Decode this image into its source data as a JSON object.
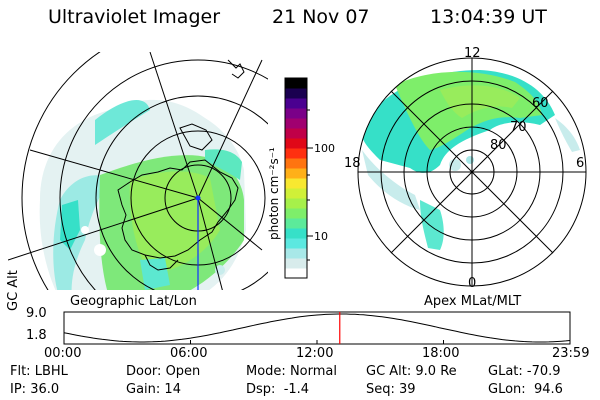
{
  "header": {
    "instrument": "Ultraviolet Imager",
    "date": "21 Nov 07",
    "time": "13:04:39 UT"
  },
  "colorbar": {
    "unit_label": "photon cm⁻²s⁻¹",
    "tick_100": "100",
    "tick_10": "10",
    "colors": [
      "#ffffff",
      "#d8ecec",
      "#a8e8e8",
      "#5ce8e0",
      "#36e0c8",
      "#5cea9a",
      "#7eee6a",
      "#a6f04a",
      "#d0f038",
      "#f8e830",
      "#ffb018",
      "#ff7410",
      "#ff3010",
      "#e00818",
      "#c00048",
      "#a00070",
      "#7a0088",
      "#4a0090",
      "#1a0050",
      "#000000"
    ]
  },
  "left_map": {
    "caption": "Geographic Lat/Lon"
  },
  "right_map": {
    "caption": "Apex MLat/MLT",
    "mlt_labels": {
      "top": "12",
      "left": "18",
      "right": "6",
      "bottom": "0"
    },
    "lat_labels": [
      "60",
      "70",
      "80"
    ]
  },
  "altitude_plot": {
    "axis_label": "GC Alt",
    "y_ticks": [
      "9.0",
      "1.8"
    ],
    "x_ticks": [
      "00:00",
      "06:00",
      "12:00",
      "18:00",
      "23:59"
    ],
    "current_marker_hours": 13.08,
    "marker_color": "#ff0000"
  },
  "status": {
    "row1": [
      {
        "label": "Flt:",
        "value": "LBHL"
      },
      {
        "label": "Door:",
        "value": "Open"
      },
      {
        "label": "Mode:",
        "value": "Normal"
      },
      {
        "label": "GC Alt:",
        "value": "9.0 Re"
      },
      {
        "label": "GLat:",
        "value": "-70.9"
      }
    ],
    "row2": [
      {
        "label": "IP:",
        "value": "36.0"
      },
      {
        "label": "Gain:",
        "value": "14"
      },
      {
        "label": "Dsp:",
        "value": "-1.4"
      },
      {
        "label": "Seq:",
        "value": "39"
      },
      {
        "label": "GLon:",
        "value": "94.6"
      }
    ]
  }
}
